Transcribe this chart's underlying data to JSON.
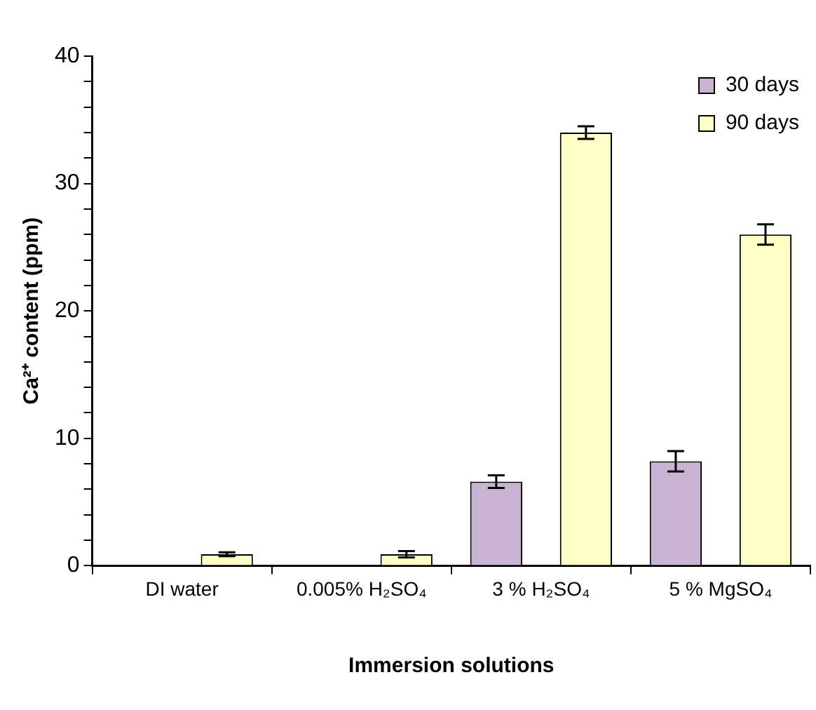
{
  "chart_data": {
    "type": "bar",
    "xlabel": "Immersion solutions",
    "ylabel": "Ca²⁺ content (ppm)",
    "categories": [
      "DI water",
      "0.005% H₂SO₄",
      "3 % H₂SO₄",
      "5 % MgSO₄"
    ],
    "series": [
      {
        "name": "30 days",
        "color": "#c8b4d2",
        "values": [
          0,
          0,
          6.6,
          8.2
        ],
        "errors": [
          null,
          null,
          0.5,
          0.8
        ]
      },
      {
        "name": "90 days",
        "color": "#ffffc8",
        "values": [
          0.9,
          0.9,
          34,
          26
        ],
        "errors": [
          0.15,
          0.25,
          0.5,
          0.8
        ]
      }
    ],
    "ylim": [
      0,
      40
    ],
    "yticks": [
      0,
      {
        "value": 2,
        "label": null
      },
      {
        "value": 4,
        "label": null
      },
      {
        "value": 6,
        "label": null
      },
      {
        "value": 8,
        "label": null
      },
      10,
      {
        "value": 12,
        "label": null
      },
      {
        "value": 14,
        "label": null
      },
      {
        "value": 16,
        "label": null
      },
      {
        "value": 18,
        "label": null
      },
      20,
      {
        "value": 22,
        "label": null
      },
      {
        "value": 24,
        "label": null
      },
      {
        "value": 26,
        "label": null
      },
      {
        "value": 28,
        "label": null
      },
      30,
      {
        "value": 32,
        "label": null
      },
      {
        "value": 34,
        "label": null
      },
      {
        "value": 36,
        "label": null
      },
      {
        "value": 38,
        "label": null
      },
      40
    ],
    "legend": "top right",
    "grid": false
  }
}
